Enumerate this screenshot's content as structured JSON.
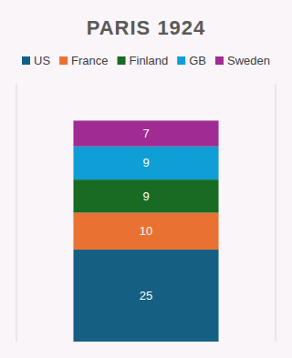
{
  "chart_data": {
    "type": "bar",
    "title": "PARIS 1924",
    "categories": [
      null
    ],
    "stacked": true,
    "data_labels": true,
    "legend": "top",
    "tick_labels": false,
    "grid": false,
    "ylim": [
      0,
      70
    ],
    "series": [
      {
        "name": "US",
        "color": "#156082",
        "values": [
          25
        ]
      },
      {
        "name": "France",
        "color": "#e97132",
        "values": [
          10
        ]
      },
      {
        "name": "Finland",
        "color": "#196b24",
        "values": [
          9
        ]
      },
      {
        "name": "GB",
        "color": "#0f9ed5",
        "values": [
          9
        ]
      },
      {
        "name": "Sweden",
        "color": "#a02b93",
        "values": [
          7
        ]
      }
    ]
  }
}
